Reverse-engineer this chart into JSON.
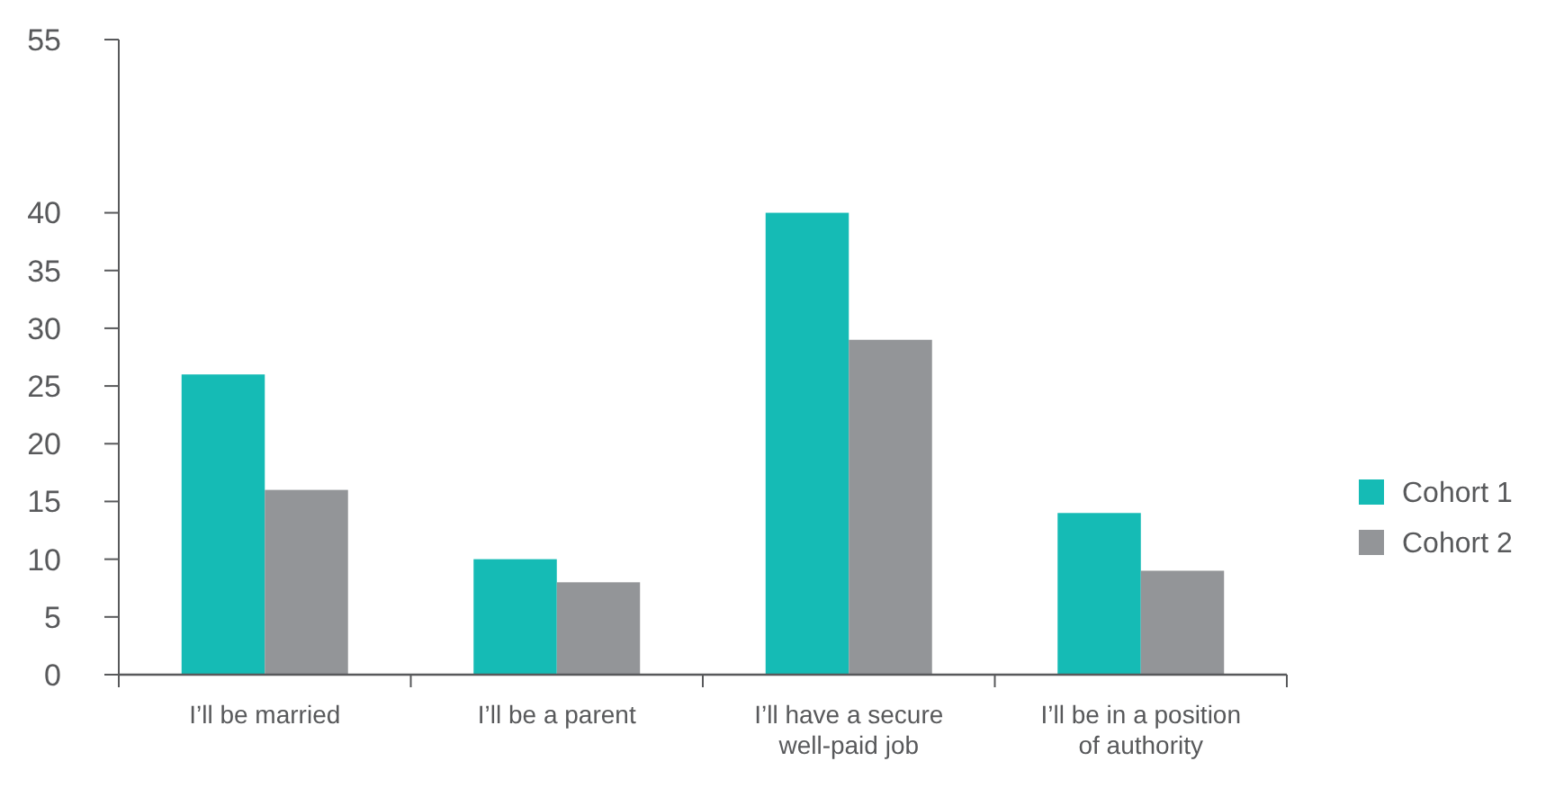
{
  "chart_data": {
    "type": "bar",
    "categories": [
      "I’ll be married",
      "I’ll be a parent",
      "I’ll have a secure well-paid job",
      "I’ll be in a position of authority"
    ],
    "series": [
      {
        "name": "Cohort 1",
        "color": "#15bbb5",
        "values": [
          26,
          10,
          40,
          14
        ]
      },
      {
        "name": "Cohort 2",
        "color": "#939598",
        "values": [
          16,
          8,
          29,
          9
        ]
      }
    ],
    "ylim": [
      0,
      55
    ],
    "yticks": [
      0,
      5,
      10,
      15,
      20,
      25,
      30,
      35,
      40,
      55
    ],
    "grid": false,
    "legend": "right"
  }
}
